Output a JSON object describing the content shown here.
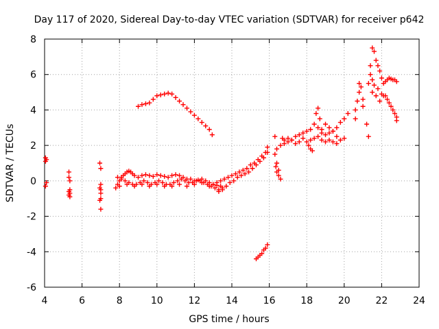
{
  "chart_data": {
    "type": "scatter",
    "title": "Day 117 of 2020, Sidereal Day-to-day VTEC variation (SDTVAR) for receiver p642",
    "xlabel": "GPS time / hours",
    "ylabel": "SDTVAR / TECUs",
    "xlim": [
      4,
      24
    ],
    "ylim": [
      -6,
      8
    ],
    "xticks": [
      4,
      6,
      8,
      10,
      12,
      14,
      16,
      18,
      20,
      22,
      24
    ],
    "yticks": [
      -6,
      -4,
      -2,
      0,
      2,
      4,
      6,
      8
    ],
    "grid": true,
    "marker": "+",
    "colors": {
      "series": "#ff0000",
      "axis": "#000000",
      "grid": "#a0a0a0"
    },
    "series": [
      {
        "name": "SDTVAR",
        "x": [
          4.05,
          4.05,
          4.1,
          4.1,
          4.05,
          5.3,
          5.3,
          5.35,
          5.35,
          5.3,
          5.35,
          5.3,
          5.35,
          6.95,
          7.0,
          7.0,
          6.95,
          7.0,
          7.0,
          7.0,
          6.95,
          7.0,
          7.8,
          7.9,
          8.0,
          8.1,
          8.2,
          8.3,
          8.4,
          8.5,
          8.6,
          8.7,
          8.8,
          9.0,
          9.2,
          9.4,
          9.6,
          9.8,
          10.0,
          10.2,
          10.4,
          10.6,
          10.8,
          11.0,
          11.2,
          11.4,
          11.6,
          11.8,
          12.0,
          12.2,
          12.4,
          12.6,
          12.8,
          13.0,
          13.2,
          13.4,
          7.9,
          8.1,
          8.3,
          8.5,
          8.7,
          8.9,
          9.1,
          9.3,
          9.5,
          9.7,
          9.9,
          10.1,
          10.3,
          10.5,
          10.7,
          10.9,
          11.1,
          11.3,
          11.5,
          11.7,
          11.9,
          12.1,
          12.3,
          12.5,
          12.7,
          12.9,
          13.1,
          13.3,
          13.5,
          8.0,
          8.4,
          8.8,
          9.2,
          9.6,
          10.0,
          10.4,
          10.8,
          11.2,
          11.6,
          12.0,
          12.4,
          12.8,
          13.0,
          13.2,
          13.4,
          13.6,
          13.8,
          14.0,
          14.2,
          14.4,
          14.6,
          14.8,
          15.0,
          15.2,
          15.4,
          15.6,
          15.8,
          15.9,
          13.3,
          13.5,
          13.7,
          13.9,
          14.1,
          14.3,
          14.5,
          14.7,
          14.9,
          15.1,
          15.3,
          15.5,
          15.7,
          15.9,
          9.0,
          9.2,
          9.4,
          9.6,
          9.8,
          10.0,
          10.2,
          10.4,
          10.6,
          10.8,
          11.0,
          11.2,
          11.4,
          11.6,
          11.8,
          12.0,
          12.2,
          12.4,
          12.6,
          12.8,
          12.95,
          15.3,
          15.4,
          15.5,
          15.6,
          15.7,
          15.8,
          15.9,
          16.3,
          16.3,
          16.35,
          16.4,
          16.4,
          16.5,
          16.5,
          16.6,
          16.7,
          16.8,
          17.0,
          17.2,
          17.4,
          17.6,
          17.8,
          18.0,
          18.2,
          18.4,
          18.6,
          18.8,
          19.0,
          19.2,
          19.4,
          19.6,
          19.8,
          20.0,
          20.2,
          16.4,
          16.6,
          16.8,
          17.0,
          17.2,
          17.4,
          17.6,
          17.8,
          18.0,
          18.2,
          18.4,
          18.6,
          18.8,
          19.0,
          19.2,
          19.4,
          19.6,
          19.8,
          20.0,
          18.1,
          18.2,
          18.3,
          18.5,
          18.6,
          18.7,
          18.8,
          19.0,
          19.2,
          19.4,
          19.6,
          20.6,
          20.7,
          20.8,
          20.9,
          21.0,
          21.2,
          21.3,
          21.4,
          21.4,
          21.5,
          21.6,
          21.7,
          21.8,
          21.9,
          22.0,
          22.1,
          22.2,
          22.3,
          22.4,
          22.5,
          22.6,
          22.7,
          22.8,
          20.6,
          20.8,
          21.0,
          21.3,
          21.5,
          21.7,
          21.9,
          22.1,
          22.3,
          22.5,
          22.7,
          22.8,
          22.2,
          22.4,
          22.6,
          22.8,
          21.5,
          21.6,
          21.8,
          22.0
        ],
        "y": [
          1.3,
          1.1,
          1.2,
          -0.1,
          -0.3,
          0.5,
          0.2,
          0.0,
          -0.5,
          -0.6,
          -0.7,
          -0.8,
          -0.9,
          1.0,
          0.7,
          -0.2,
          -0.4,
          -0.5,
          -0.7,
          -1.0,
          -1.1,
          -1.6,
          -0.4,
          -0.2,
          0.0,
          0.2,
          0.3,
          0.4,
          0.5,
          0.55,
          0.5,
          0.4,
          0.3,
          0.2,
          0.3,
          0.35,
          0.3,
          0.25,
          0.35,
          0.3,
          0.25,
          0.2,
          0.3,
          0.35,
          0.3,
          0.2,
          0.1,
          0.1,
          0.0,
          0.05,
          0.1,
          0.0,
          -0.1,
          -0.2,
          -0.25,
          -0.3,
          0.2,
          0.1,
          0.0,
          -0.1,
          -0.2,
          -0.2,
          -0.1,
          0.0,
          -0.1,
          -0.2,
          -0.1,
          0.0,
          -0.1,
          -0.2,
          -0.2,
          -0.1,
          0.0,
          0.1,
          0.0,
          -0.1,
          -0.1,
          0.0,
          0.0,
          -0.1,
          -0.2,
          -0.3,
          -0.4,
          -0.5,
          -0.5,
          -0.3,
          -0.2,
          -0.3,
          -0.2,
          -0.3,
          -0.2,
          -0.3,
          -0.3,
          -0.2,
          -0.3,
          -0.2,
          -0.1,
          -0.3,
          -0.2,
          -0.1,
          0.0,
          0.1,
          0.2,
          0.3,
          0.4,
          0.5,
          0.6,
          0.7,
          0.9,
          1.0,
          1.2,
          1.4,
          1.6,
          1.9,
          -0.6,
          -0.4,
          -0.3,
          -0.1,
          0.0,
          0.2,
          0.3,
          0.4,
          0.5,
          0.7,
          0.9,
          1.1,
          1.3,
          1.6,
          4.2,
          4.3,
          4.35,
          4.4,
          4.6,
          4.8,
          4.85,
          4.9,
          4.95,
          4.9,
          4.7,
          4.5,
          4.3,
          4.1,
          3.9,
          3.7,
          3.5,
          3.3,
          3.1,
          2.9,
          2.6,
          -4.4,
          -4.3,
          -4.2,
          -4.1,
          -3.9,
          -3.8,
          -3.6,
          2.5,
          1.5,
          0.8,
          1.0,
          0.5,
          0.6,
          0.3,
          0.1,
          2.4,
          2.3,
          2.4,
          2.3,
          2.5,
          2.6,
          2.7,
          2.8,
          2.9,
          3.2,
          3.0,
          2.9,
          3.2,
          3.0,
          2.8,
          3.0,
          3.3,
          3.5,
          3.8,
          1.8,
          2.0,
          2.1,
          2.2,
          2.3,
          2.1,
          2.2,
          2.4,
          2.2,
          2.3,
          2.4,
          2.5,
          2.3,
          2.2,
          2.3,
          2.2,
          2.1,
          2.3,
          2.4,
          2.0,
          1.8,
          1.7,
          3.8,
          4.1,
          3.5,
          2.7,
          2.6,
          2.7,
          2.8,
          2.5,
          3.5,
          4.5,
          5.5,
          5.3,
          4.2,
          3.2,
          2.5,
          6.0,
          6.5,
          7.5,
          7.3,
          6.8,
          6.5,
          6.2,
          5.8,
          5.5,
          5.6,
          5.7,
          5.8,
          5.75,
          5.7,
          5.7,
          5.6,
          4.0,
          5.0,
          4.6,
          5.5,
          5.0,
          4.8,
          4.5,
          4.8,
          4.6,
          4.2,
          3.8,
          3.4,
          4.8,
          4.4,
          4.0,
          3.6,
          5.7,
          5.4,
          5.2,
          4.9
        ]
      }
    ]
  }
}
